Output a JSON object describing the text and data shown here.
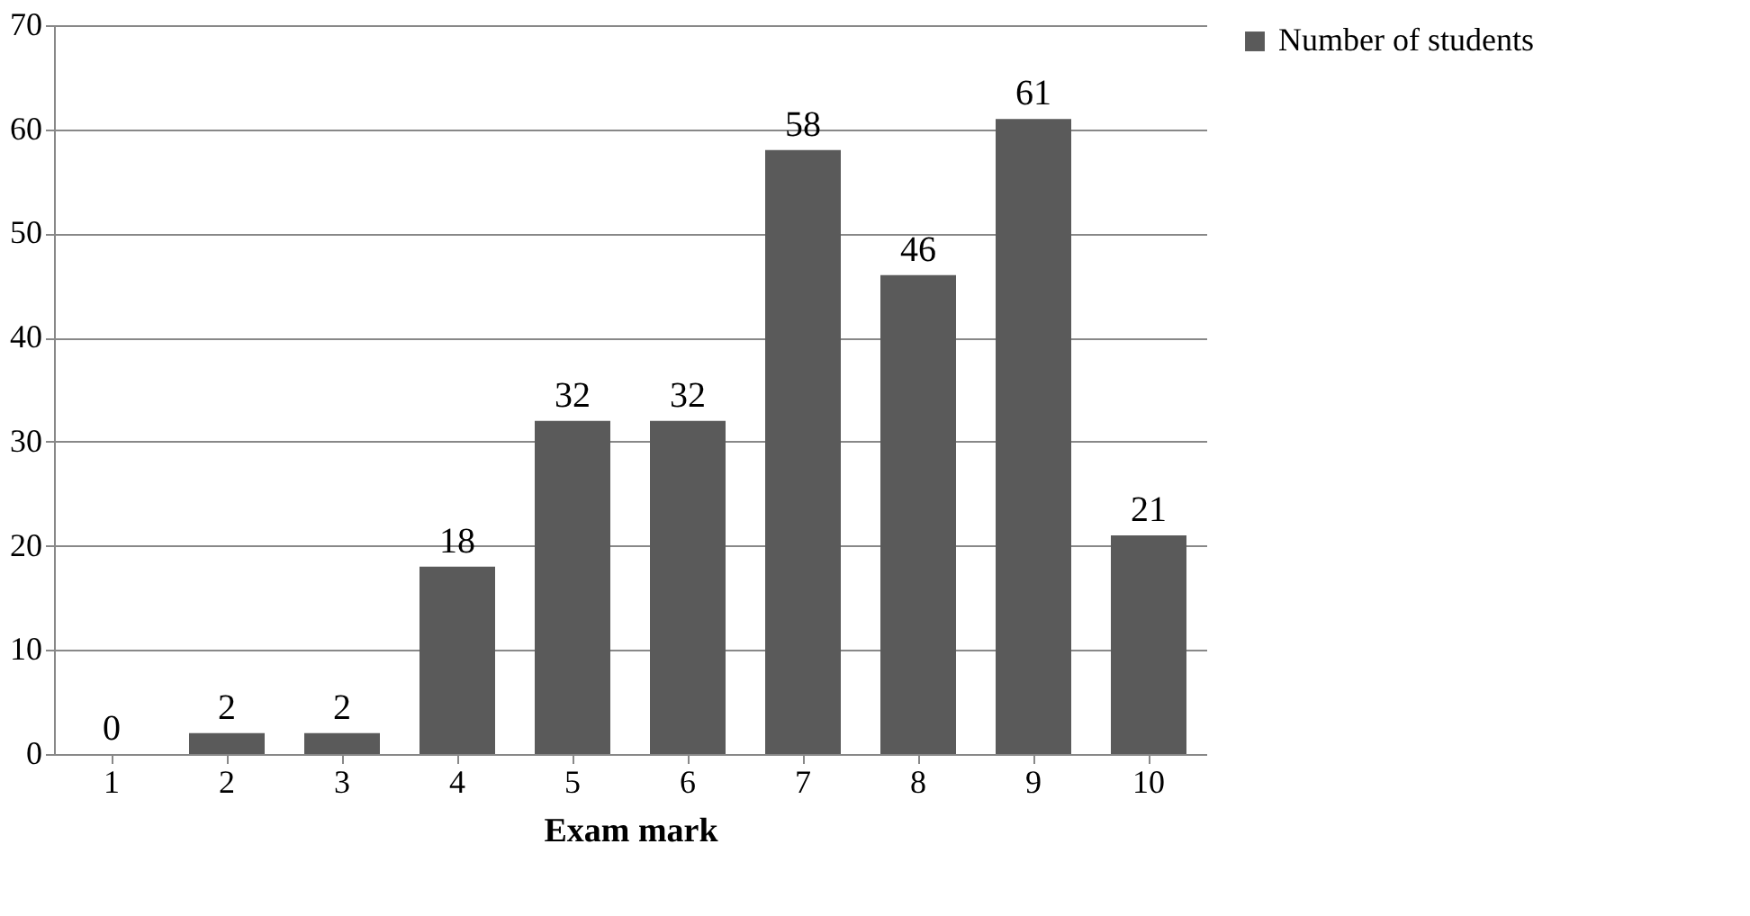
{
  "chart_data": {
    "type": "bar",
    "xlabel": "Exam mark",
    "categories": [
      "1",
      "2",
      "3",
      "4",
      "5",
      "6",
      "7",
      "8",
      "9",
      "10"
    ],
    "series": [
      {
        "name": "Number of students",
        "color": "#5a5a5a",
        "values": [
          0,
          2,
          2,
          18,
          32,
          32,
          58,
          46,
          61,
          21
        ]
      }
    ],
    "ylim": [
      0,
      70
    ],
    "yticks": [
      0,
      10,
      20,
      30,
      40,
      50,
      60,
      70
    ],
    "grid": "y",
    "legend": "right",
    "data_labels": true
  }
}
